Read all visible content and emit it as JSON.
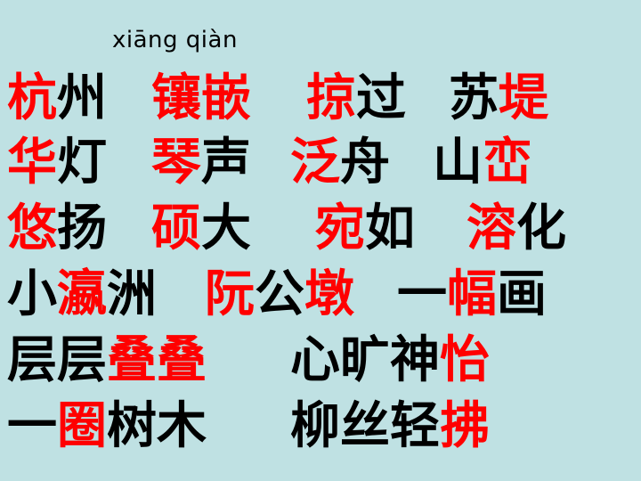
{
  "colors": {
    "background": "#bfe1e3",
    "normal": "#000000",
    "highlight": "#ff0000"
  },
  "pinyin": "xiāng  qiàn",
  "lines": [
    {
      "words": [
        {
          "chars": [
            {
              "t": "杭",
              "r": true
            },
            {
              "t": "州",
              "r": false
            }
          ]
        },
        {
          "chars": [
            {
              "t": "镶",
              "r": true
            },
            {
              "t": "嵌",
              "r": true
            }
          ]
        },
        {
          "chars": [
            {
              "t": "掠",
              "r": true
            },
            {
              "t": "过",
              "r": false
            }
          ]
        },
        {
          "chars": [
            {
              "t": "苏",
              "r": false
            },
            {
              "t": "堤",
              "r": true
            }
          ]
        }
      ]
    },
    {
      "words": [
        {
          "chars": [
            {
              "t": "华",
              "r": true
            },
            {
              "t": "灯",
              "r": false
            }
          ]
        },
        {
          "chars": [
            {
              "t": "琴",
              "r": true
            },
            {
              "t": "声",
              "r": false
            }
          ]
        },
        {
          "chars": [
            {
              "t": "泛",
              "r": true
            },
            {
              "t": "舟",
              "r": false
            }
          ]
        },
        {
          "chars": [
            {
              "t": "山",
              "r": false
            },
            {
              "t": "峦",
              "r": true
            }
          ]
        }
      ]
    },
    {
      "words": [
        {
          "chars": [
            {
              "t": "悠",
              "r": true
            },
            {
              "t": "扬",
              "r": false
            }
          ]
        },
        {
          "chars": [
            {
              "t": "硕",
              "r": true
            },
            {
              "t": "大",
              "r": false
            }
          ]
        },
        {
          "chars": [
            {
              "t": "宛",
              "r": true
            },
            {
              "t": "如",
              "r": false
            }
          ]
        },
        {
          "chars": [
            {
              "t": "溶",
              "r": true
            },
            {
              "t": "化",
              "r": false
            }
          ]
        }
      ]
    },
    {
      "words": [
        {
          "chars": [
            {
              "t": "小",
              "r": false
            },
            {
              "t": "瀛",
              "r": true
            },
            {
              "t": "洲",
              "r": false
            }
          ]
        },
        {
          "chars": [
            {
              "t": "阮",
              "r": true
            },
            {
              "t": "公",
              "r": false
            },
            {
              "t": "墩",
              "r": true
            }
          ]
        },
        {
          "chars": [
            {
              "t": "一",
              "r": false
            },
            {
              "t": "幅",
              "r": true
            },
            {
              "t": "画",
              "r": false
            }
          ]
        }
      ]
    },
    {
      "words": [
        {
          "chars": [
            {
              "t": "层",
              "r": false
            },
            {
              "t": "层",
              "r": false
            },
            {
              "t": "叠",
              "r": true
            },
            {
              "t": "叠",
              "r": true
            }
          ]
        },
        {
          "chars": [
            {
              "t": "心",
              "r": false
            },
            {
              "t": "旷",
              "r": false
            },
            {
              "t": "神",
              "r": false
            },
            {
              "t": "怡",
              "r": true
            }
          ]
        }
      ]
    },
    {
      "words": [
        {
          "chars": [
            {
              "t": "一",
              "r": false
            },
            {
              "t": "圈",
              "r": true
            },
            {
              "t": "树",
              "r": false
            },
            {
              "t": "木",
              "r": false
            }
          ]
        },
        {
          "chars": [
            {
              "t": "柳",
              "r": false
            },
            {
              "t": "丝",
              "r": false
            },
            {
              "t": "轻",
              "r": false
            },
            {
              "t": "拂",
              "r": true
            }
          ]
        }
      ]
    }
  ]
}
